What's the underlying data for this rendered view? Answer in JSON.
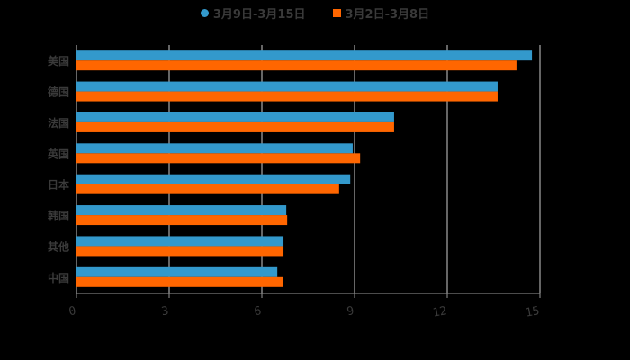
{
  "chart_data": {
    "type": "bar",
    "orientation": "horizontal",
    "title": "",
    "xlabel": "",
    "ylabel": "",
    "categories": [
      "美国",
      "德国",
      "法国",
      "英国",
      "日本",
      "韩国",
      "其他",
      "中国"
    ],
    "series": [
      {
        "name": "3月9日-3月15日",
        "color": "#3399cc",
        "values": [
          14.74,
          13.63,
          10.28,
          8.94,
          8.86,
          6.79,
          6.7,
          6.5
        ]
      },
      {
        "name": "3月2日-3月8日",
        "color": "#ff6600",
        "values": [
          14.24,
          13.63,
          10.28,
          9.18,
          8.5,
          6.82,
          6.7,
          6.67
        ]
      }
    ],
    "xlim": [
      0,
      15
    ],
    "xticks": [
      0,
      3,
      6,
      9,
      12,
      15
    ],
    "grid": true,
    "legend_position": "top"
  },
  "legend": {
    "items": [
      {
        "label": "3月9日-3月15日",
        "color": "#3399cc",
        "marker": "circle"
      },
      {
        "label": "3月2日-3月8日",
        "color": "#ff6600",
        "marker": "square"
      }
    ]
  },
  "colors": {
    "background": "#000000",
    "text": "#3a3a3a",
    "grid": "#cccccc"
  }
}
